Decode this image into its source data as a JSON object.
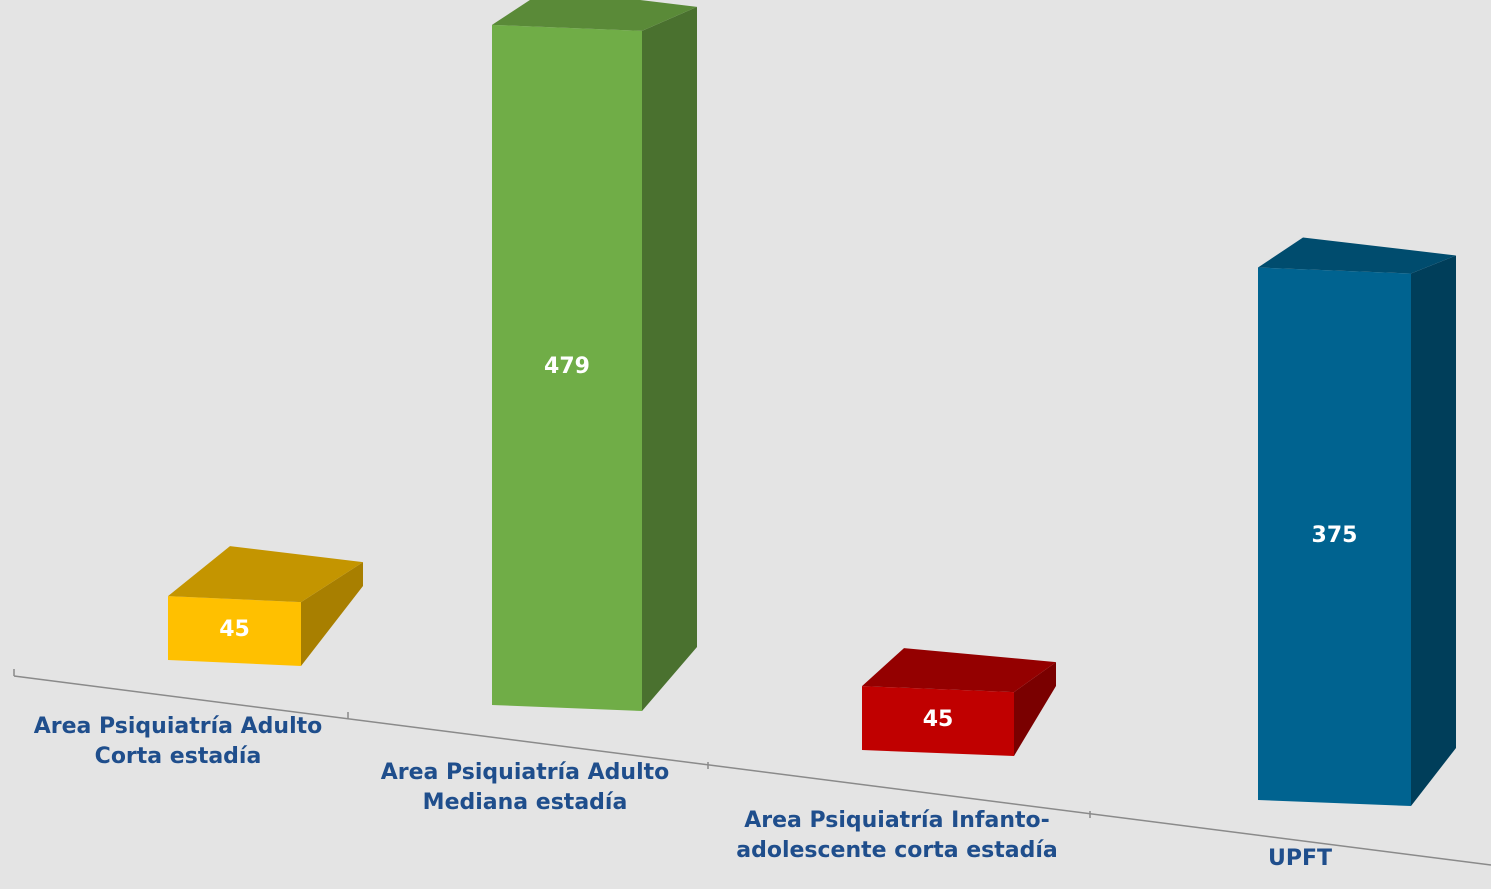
{
  "chart_data": {
    "type": "bar",
    "style": "3d-perspective",
    "categories": [
      "Area Psiquiatría Adulto Corta estadía",
      "Area Psiquiatría Adulto Mediana estadía",
      "Area Psiquiatría Infanto-adolescente corta estadía",
      "UPFT"
    ],
    "category_lines": [
      [
        "Area Psiquiatría Adulto",
        "Corta estadía"
      ],
      [
        "Area Psiquiatría Adulto",
        "Mediana estadía"
      ],
      [
        "Area Psiquiatría Infanto-",
        "adolescente corta estadía"
      ],
      [
        "UPFT"
      ]
    ],
    "values": [
      45,
      479,
      45,
      375
    ],
    "data_labels": [
      "45",
      "479",
      "45",
      "375"
    ],
    "colors": [
      {
        "front": "#ffc000",
        "side": "#a87f00",
        "top": "#c49500"
      },
      {
        "front": "#70ad47",
        "side": "#4a712f",
        "top": "#5a8a38"
      },
      {
        "front": "#c00000",
        "side": "#7a0000",
        "top": "#940000"
      },
      {
        "front": "#006390",
        "side": "#003e5a",
        "top": "#004c6e"
      }
    ],
    "title": "",
    "xlabel": "",
    "ylabel": "",
    "grid": false,
    "legend": "none"
  }
}
